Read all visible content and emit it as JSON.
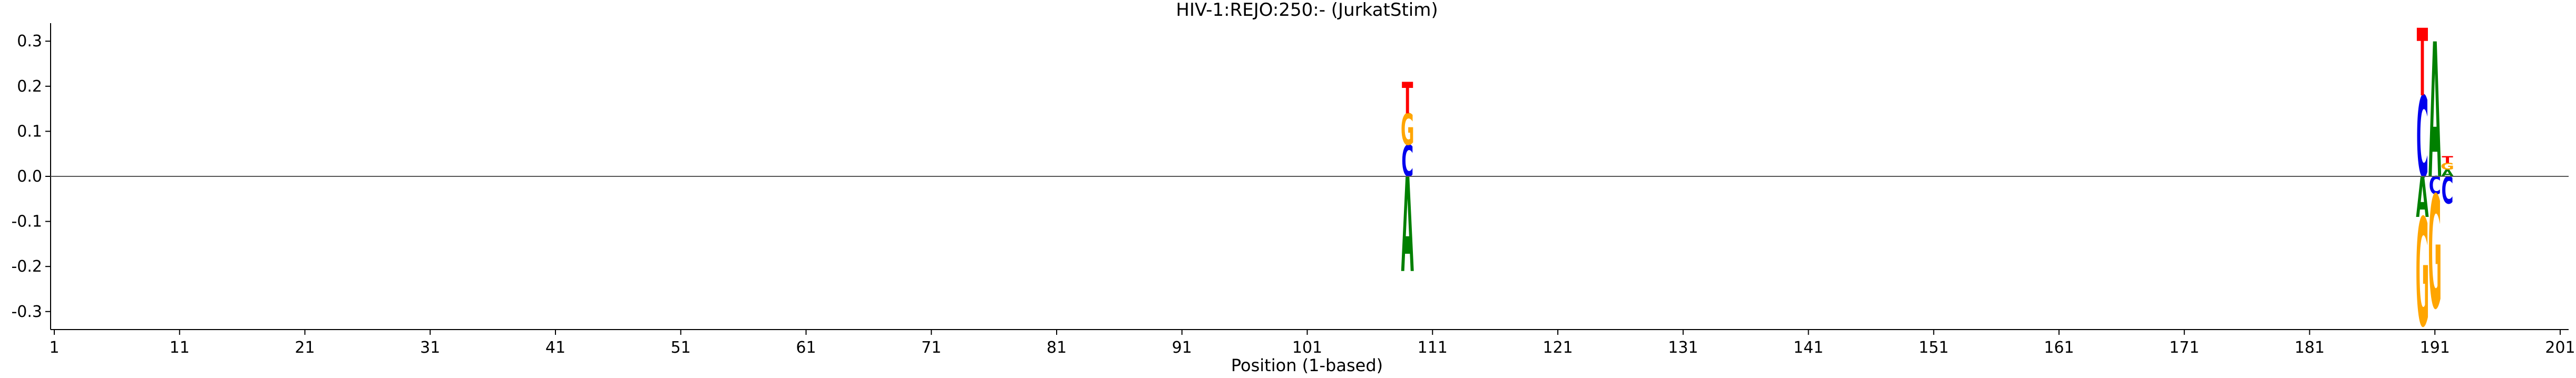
{
  "chart_data": {
    "type": "logo",
    "title": "HIV-1:REJO:250:-  (JurkatStim)",
    "xlabel": "Position (1-based)",
    "ylabel": "",
    "xlim": [
      1,
      201
    ],
    "ylim": [
      -0.34,
      0.34
    ],
    "xticks": [
      1,
      11,
      21,
      31,
      41,
      51,
      61,
      71,
      81,
      91,
      101,
      111,
      121,
      131,
      141,
      151,
      161,
      171,
      181,
      191,
      201
    ],
    "yticks": [
      -0.3,
      -0.2,
      -0.1,
      0.0,
      0.1,
      0.2,
      0.3
    ],
    "grid": false,
    "letter_colors": {
      "A": "#008000",
      "C": "#0000ee",
      "G": "#ffa500",
      "T": "#ff0000"
    },
    "positions": [
      {
        "position": 109,
        "positive": [
          {
            "letter": "C",
            "value": 0.07
          },
          {
            "letter": "G",
            "value": 0.07
          },
          {
            "letter": "T",
            "value": 0.07
          }
        ],
        "negative": [
          {
            "letter": "A",
            "value": 0.21
          }
        ]
      },
      {
        "position": 190,
        "positive": [
          {
            "letter": "C",
            "value": 0.18
          },
          {
            "letter": "T",
            "value": 0.15
          }
        ],
        "negative": [
          {
            "letter": "A",
            "value": 0.09
          },
          {
            "letter": "G",
            "value": 0.24
          }
        ]
      },
      {
        "position": 191,
        "positive": [
          {
            "letter": "A",
            "value": 0.3
          }
        ],
        "negative": [
          {
            "letter": "C",
            "value": 0.04
          },
          {
            "letter": "G",
            "value": 0.25
          }
        ]
      },
      {
        "position": 192,
        "positive": [
          {
            "letter": "A",
            "value": 0.015
          },
          {
            "letter": "G",
            "value": 0.015
          },
          {
            "letter": "T",
            "value": 0.015
          }
        ],
        "negative": [
          {
            "letter": "C",
            "value": 0.06
          }
        ]
      }
    ]
  }
}
